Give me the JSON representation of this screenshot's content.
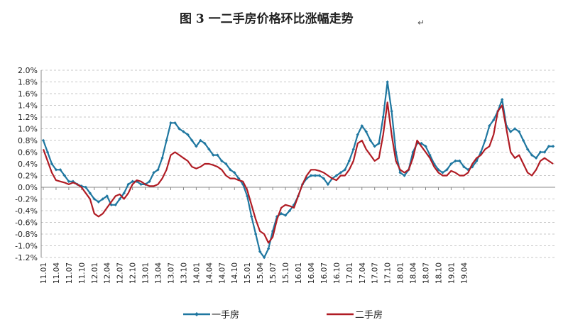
{
  "chart_data": {
    "type": "line",
    "title": "图 3    一二手房价格环比涨幅走势",
    "title_mark": "↵",
    "xlabel": "",
    "ylabel": "",
    "y_unit": "%",
    "ylim": [
      -1.2,
      2.0
    ],
    "y_ticks": [
      "2.0%",
      "1.8%",
      "1.6%",
      "1.4%",
      "1.2%",
      "1.0%",
      "0.8%",
      "0.6%",
      "0.4%",
      "0.2%",
      "0.0%",
      "-0.2%",
      "-0.4%",
      "-0.6%",
      "-0.8%",
      "-1.0%",
      "-1.2%"
    ],
    "x_ticks": [
      "11.01",
      "11.04",
      "11.07",
      "11.10",
      "12.01",
      "12.04",
      "12.07",
      "12.10",
      "13.01",
      "13.04",
      "13.07",
      "13.10",
      "14.01",
      "14.04",
      "14.07",
      "14.10",
      "15.01",
      "15.04",
      "15.07",
      "15.10",
      "16.01",
      "16.04",
      "16.07",
      "16.10",
      "17.01",
      "17.04",
      "17.07",
      "17.10",
      "18.01",
      "18.04",
      "18.07",
      "18.10",
      "19.01",
      "19.04"
    ],
    "x_range": [
      "2011-01",
      "2019-06"
    ],
    "grid": "horizontal dashed",
    "legend_position": "bottom",
    "series": [
      {
        "name": "一手房",
        "color": "#1f77a0",
        "marker": "diamond",
        "values": [
          0.8,
          0.6,
          0.4,
          0.3,
          0.3,
          0.2,
          0.1,
          0.1,
          0.05,
          0.02,
          0.0,
          -0.1,
          -0.2,
          -0.25,
          -0.2,
          -0.15,
          -0.3,
          -0.3,
          -0.2,
          -0.1,
          0.05,
          0.1,
          0.1,
          0.05,
          0.05,
          0.1,
          0.25,
          0.3,
          0.5,
          0.8,
          1.1,
          1.1,
          1.0,
          0.95,
          0.9,
          0.8,
          0.7,
          0.8,
          0.75,
          0.65,
          0.55,
          0.55,
          0.45,
          0.4,
          0.3,
          0.25,
          0.15,
          0.05,
          -0.15,
          -0.5,
          -0.8,
          -1.1,
          -1.2,
          -1.05,
          -0.75,
          -0.5,
          -0.45,
          -0.48,
          -0.4,
          -0.3,
          -0.15,
          0.05,
          0.15,
          0.2,
          0.2,
          0.2,
          0.15,
          0.05,
          0.15,
          0.2,
          0.25,
          0.3,
          0.45,
          0.65,
          0.9,
          1.05,
          0.95,
          0.8,
          0.7,
          0.75,
          1.2,
          1.8,
          1.3,
          0.6,
          0.25,
          0.2,
          0.3,
          0.6,
          0.75,
          0.75,
          0.7,
          0.55,
          0.4,
          0.3,
          0.25,
          0.3,
          0.4,
          0.45,
          0.45,
          0.35,
          0.3,
          0.35,
          0.45,
          0.6,
          0.8,
          1.05,
          1.15,
          1.3,
          1.5,
          1.05,
          0.95,
          1.0,
          0.95,
          0.8,
          0.65,
          0.55,
          0.5,
          0.6,
          0.6,
          0.7,
          0.7
        ]
      },
      {
        "name": "二手房",
        "color": "#b01c24",
        "marker": "none",
        "values": [
          0.65,
          0.45,
          0.25,
          0.12,
          0.1,
          0.08,
          0.05,
          0.08,
          0.05,
          0.0,
          -0.1,
          -0.2,
          -0.45,
          -0.5,
          -0.45,
          -0.35,
          -0.25,
          -0.15,
          -0.12,
          -0.2,
          -0.1,
          0.05,
          0.12,
          0.1,
          0.05,
          0.02,
          0.02,
          0.05,
          0.15,
          0.3,
          0.55,
          0.6,
          0.55,
          0.5,
          0.45,
          0.35,
          0.32,
          0.35,
          0.4,
          0.4,
          0.38,
          0.35,
          0.3,
          0.2,
          0.15,
          0.15,
          0.12,
          0.1,
          -0.05,
          -0.3,
          -0.55,
          -0.75,
          -0.8,
          -0.95,
          -0.85,
          -0.55,
          -0.35,
          -0.3,
          -0.32,
          -0.35,
          -0.15,
          0.05,
          0.2,
          0.3,
          0.3,
          0.28,
          0.25,
          0.2,
          0.15,
          0.12,
          0.2,
          0.2,
          0.3,
          0.45,
          0.75,
          0.8,
          0.65,
          0.55,
          0.45,
          0.5,
          0.9,
          1.45,
          0.9,
          0.45,
          0.3,
          0.25,
          0.3,
          0.5,
          0.8,
          0.7,
          0.6,
          0.5,
          0.35,
          0.25,
          0.2,
          0.2,
          0.28,
          0.25,
          0.2,
          0.2,
          0.25,
          0.4,
          0.5,
          0.55,
          0.65,
          0.7,
          0.9,
          1.3,
          1.4,
          1.0,
          0.6,
          0.5,
          0.55,
          0.4,
          0.25,
          0.2,
          0.3,
          0.45,
          0.5,
          0.45,
          0.4
        ]
      }
    ]
  }
}
